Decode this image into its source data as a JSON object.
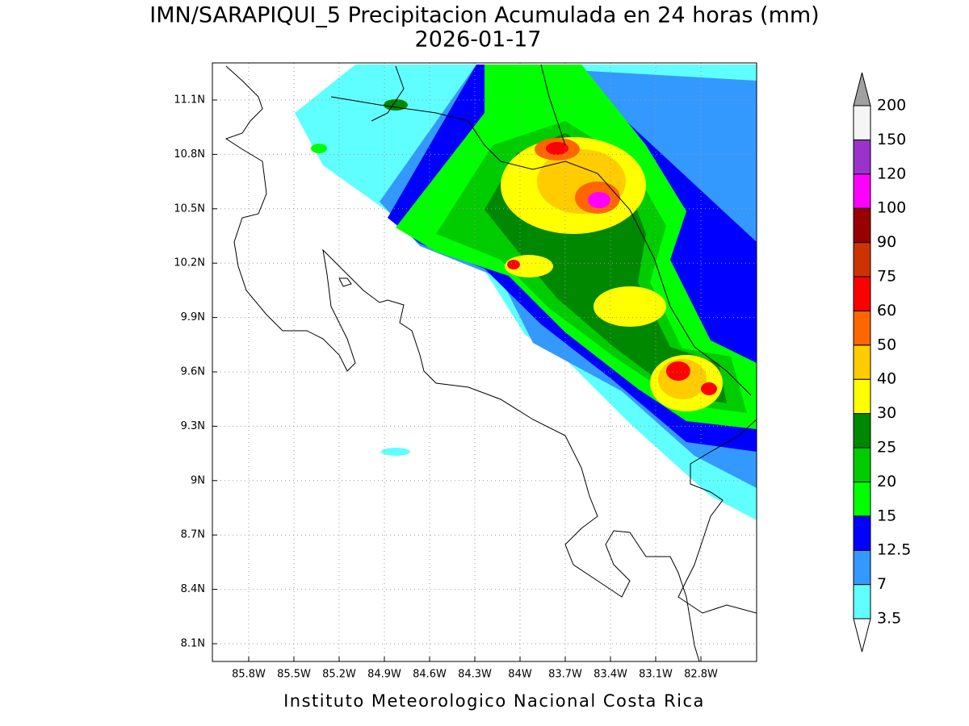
{
  "header": {
    "title": "IMN/SARAPIQUI_5 Precipitacion Acumulada en 24 horas (mm)",
    "date": "2026-01-17"
  },
  "map": {
    "lon_ticks": [
      "85.8W",
      "85.5W",
      "85.2W",
      "84.9W",
      "84.6W",
      "84.3W",
      "84W",
      "83.7W",
      "83.4W",
      "83.1W",
      "82.8W"
    ],
    "lat_ticks": [
      "11.1N",
      "10.8N",
      "10.5N",
      "10.2N",
      "9.9N",
      "9.6N",
      "9.3N",
      "9N",
      "8.7N",
      "8.4N",
      "8.1N"
    ],
    "grid": true
  },
  "colorbar": {
    "levels": [
      3.5,
      7,
      12.5,
      15,
      20,
      25,
      30,
      40,
      50,
      60,
      75,
      90,
      100,
      120,
      150,
      200
    ],
    "colors": [
      "#60ffff",
      "#3399ff",
      "#0000ff",
      "#00ff00",
      "#00cc00",
      "#008800",
      "#ffff00",
      "#ffcc00",
      "#ff6600",
      "#ff0000",
      "#cc3300",
      "#990000",
      "#ff00ff",
      "#9933cc",
      "#f5f5f5"
    ],
    "under_color": "#ffffff",
    "over_color": "#a0a0a0"
  },
  "footer": "Instituto Meteorologico Nacional Costa Rica"
}
